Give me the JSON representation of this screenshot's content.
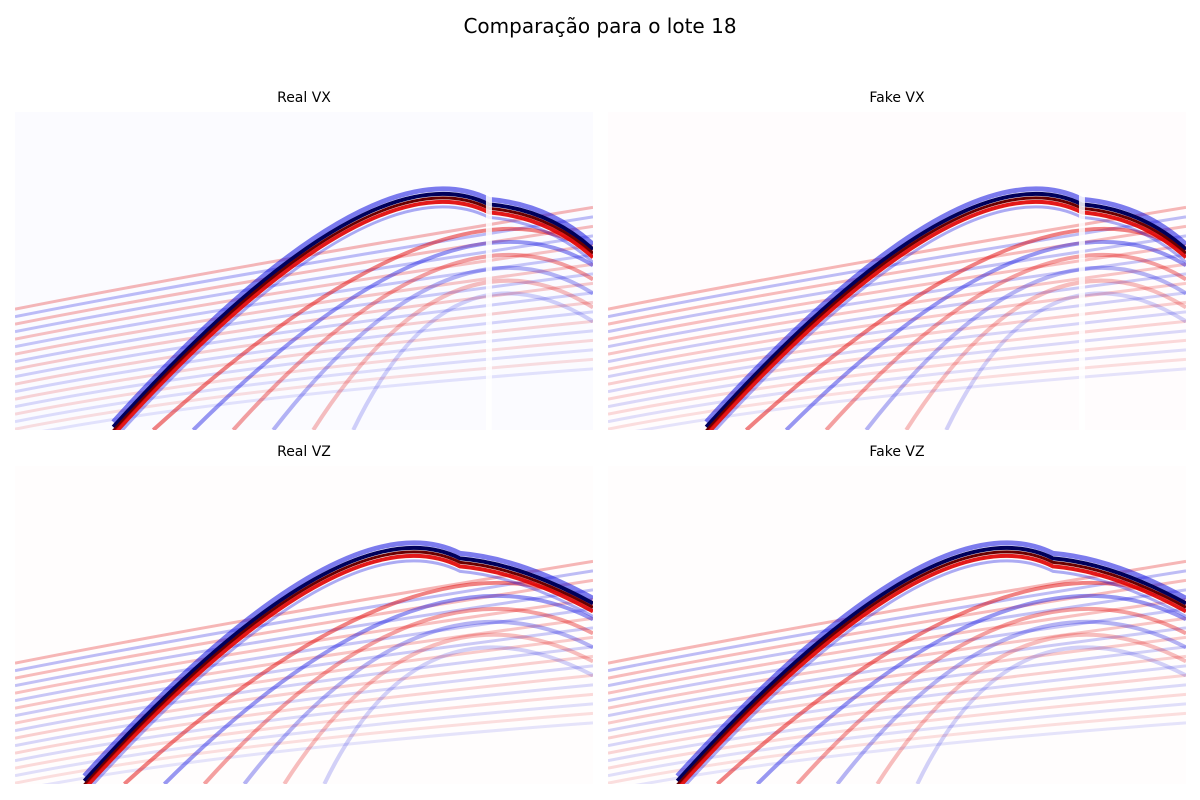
{
  "title": "Comparação para o lote 18",
  "colors": {
    "positive": "#e00000",
    "negative": "#1010e0",
    "strong_positive": "#6a0000",
    "strong_negative": "#00005a",
    "background": "#ffffff"
  },
  "chart_data": [
    {
      "type": "heatmap",
      "title": "Real VX",
      "colormap": "seismic",
      "axes": "off",
      "background_tint": "#fbfbff",
      "event": {
        "apex_frac": [
          0.82,
          0.3
        ],
        "left_end_frac": [
          0.17,
          1.0
        ],
        "gap_at_apex": true
      }
    },
    {
      "type": "heatmap",
      "title": "Fake VX",
      "colormap": "seismic",
      "axes": "off",
      "background_tint": "#fffcfd",
      "event": {
        "apex_frac": [
          0.82,
          0.3
        ],
        "left_end_frac": [
          0.17,
          1.0
        ],
        "gap_at_apex": true
      }
    },
    {
      "type": "heatmap",
      "title": "Real VZ",
      "colormap": "seismic",
      "axes": "off",
      "background_tint": "#fffdfd",
      "event": {
        "apex_frac": [
          0.77,
          0.3
        ],
        "left_end_frac": [
          0.12,
          1.0
        ],
        "gap_at_apex": false
      }
    },
    {
      "type": "heatmap",
      "title": "Fake VZ",
      "colormap": "seismic",
      "axes": "off",
      "background_tint": "#fffdfd",
      "event": {
        "apex_frac": [
          0.77,
          0.3
        ],
        "left_end_frac": [
          0.12,
          1.0
        ],
        "gap_at_apex": false
      }
    }
  ]
}
